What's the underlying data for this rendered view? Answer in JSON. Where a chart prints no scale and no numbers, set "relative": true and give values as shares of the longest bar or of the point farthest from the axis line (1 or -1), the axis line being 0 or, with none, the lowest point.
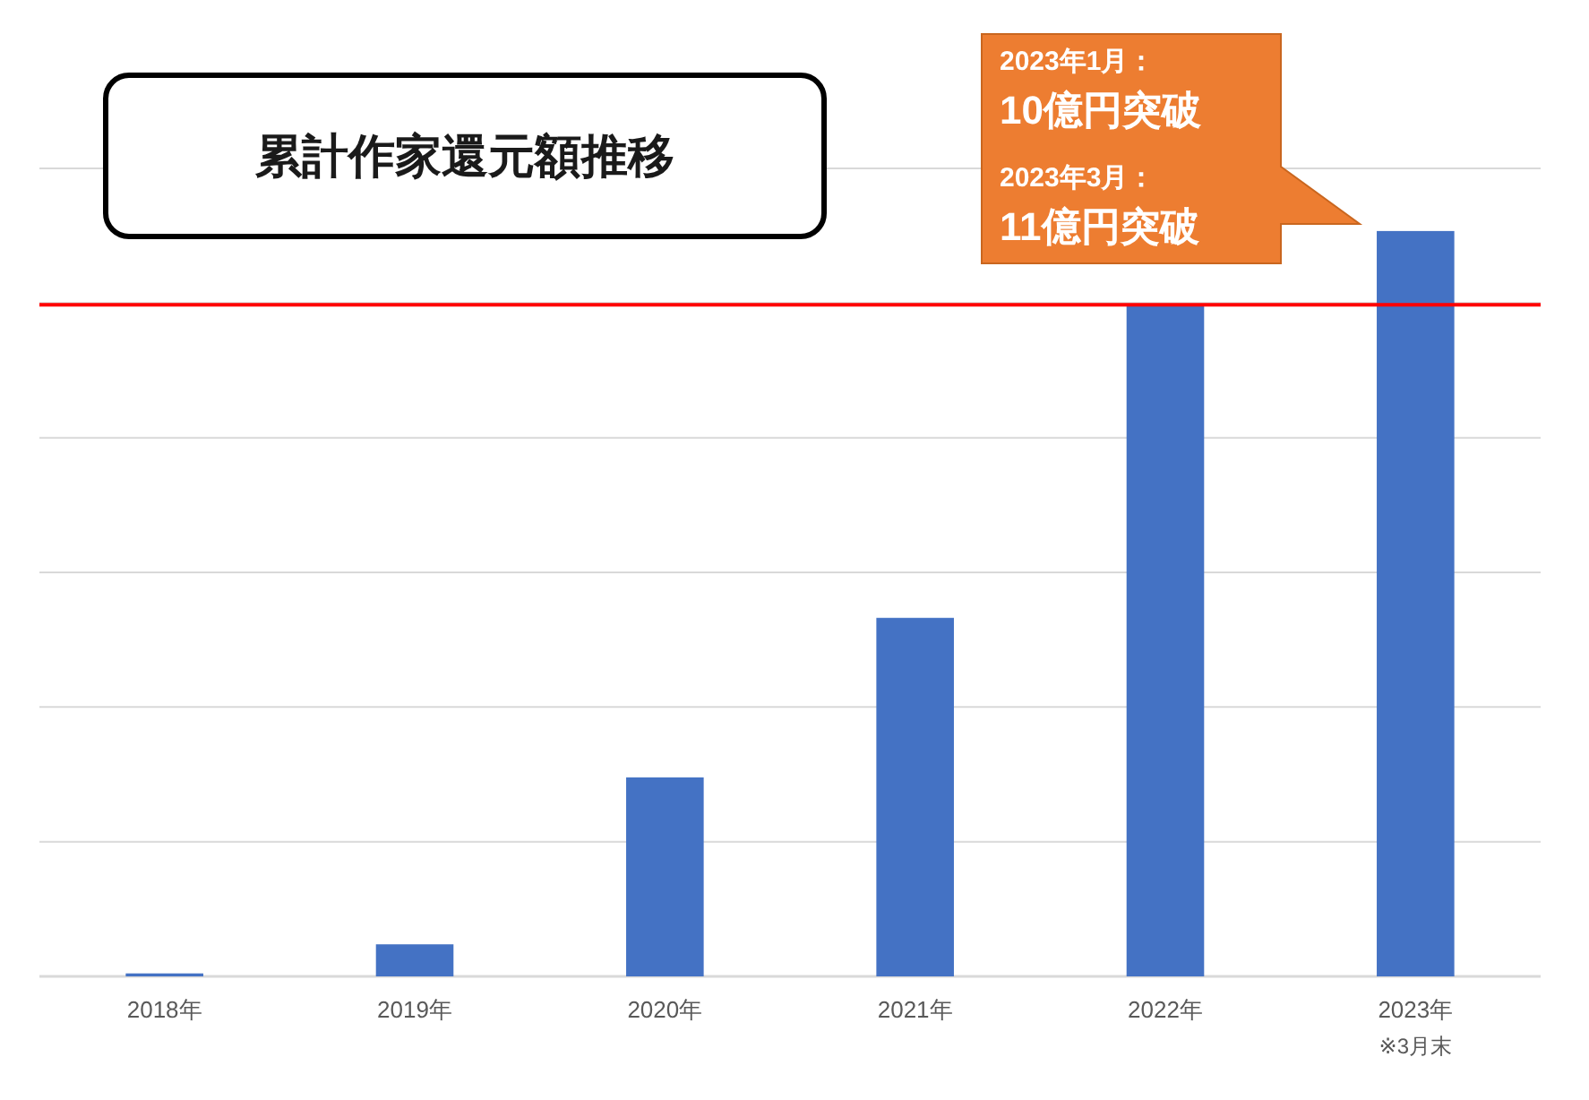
{
  "chart_data": {
    "type": "bar",
    "title": "累計作家還元額推移",
    "categories": [
      "2018年",
      "2019年",
      "2020年",
      "2021年",
      "2022年",
      "2023年"
    ],
    "values": [
      0.004,
      0.043,
      0.267,
      0.481,
      0.901,
      1
    ],
    "color": "#4472c4",
    "relative": true,
    "grid": "y",
    "ref_lines": [
      {
        "axis": "y",
        "value": 0.901,
        "color": "#ff0000"
      }
    ],
    "annotations": [
      "2023年1月：",
      "10億円突破",
      "2023年3月：",
      "11億円突破",
      "※3月末"
    ]
  }
}
